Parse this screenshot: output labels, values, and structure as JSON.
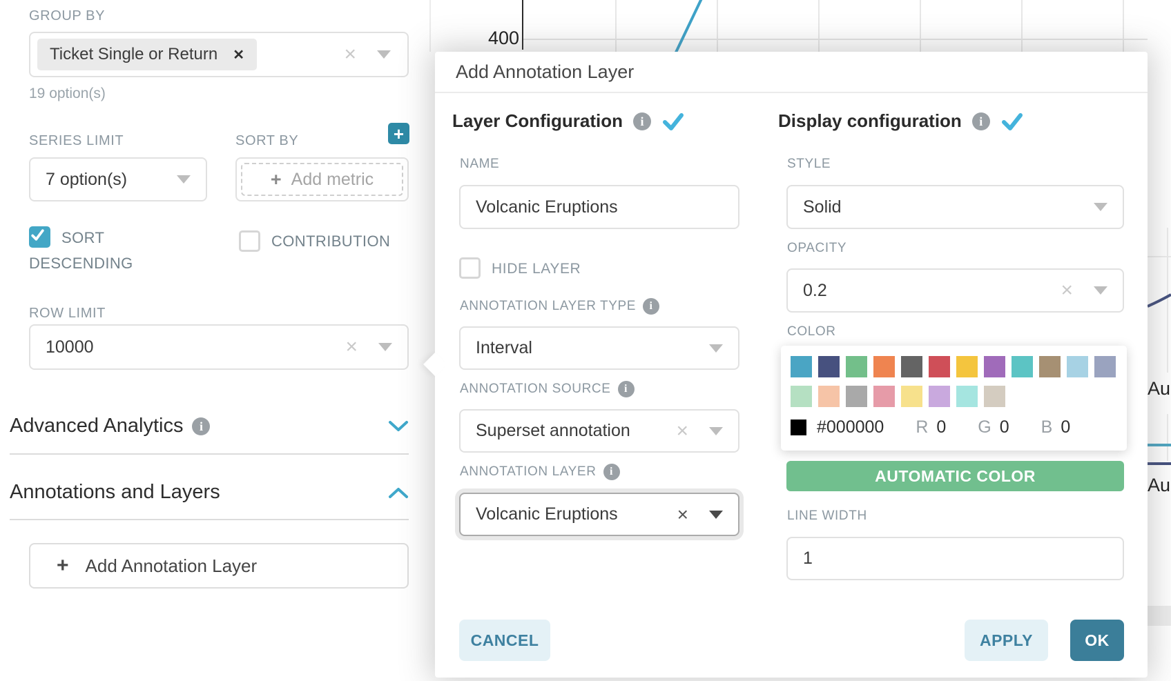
{
  "icons": {
    "tag_remove": "✕",
    "clear": "×",
    "plus": "+",
    "info": "i"
  },
  "left_panel": {
    "group_by_label": "GROUP BY",
    "group_by_tag": "Ticket Single or Return",
    "group_by_hint": "19 option(s)",
    "series_limit_label": "SERIES LIMIT",
    "series_limit_value": "7 option(s)",
    "sort_by_label": "SORT BY",
    "add_metric_placeholder": "Add metric",
    "sort_descending_label": "SORT DESCENDING",
    "contribution_label": "CONTRIBUTION",
    "row_limit_label": "ROW LIMIT",
    "row_limit_value": "10000",
    "advanced_analytics_title": "Advanced Analytics",
    "annotations_title": "Annotations and Layers",
    "add_annotation_label": "Add Annotation Layer"
  },
  "modal": {
    "title": "Add Annotation Layer",
    "layer_section_title": "Layer Configuration",
    "display_section_title": "Display configuration",
    "name_label": "NAME",
    "name_value": "Volcanic Eruptions",
    "hide_layer_label": "HIDE LAYER",
    "type_label": "ANNOTATION LAYER TYPE",
    "type_value": "Interval",
    "source_label": "ANNOTATION SOURCE",
    "source_value": "Superset annotation",
    "layer_label": "ANNOTATION LAYER",
    "layer_value": "Volcanic Eruptions",
    "style_label": "STYLE",
    "style_value": "Solid",
    "opacity_label": "OPACITY",
    "opacity_value": "0.2",
    "color_label": "COLOR",
    "automatic_color_button": "AUTOMATIC COLOR",
    "line_width_label": "LINE WIDTH",
    "line_width_value": "1",
    "cancel_button": "CANCEL",
    "apply_button": "APPLY",
    "ok_button": "OK"
  },
  "color_picker": {
    "row1": [
      "#4aa5c4",
      "#47517f",
      "#73bf8a",
      "#ef8450",
      "#646464",
      "#cf4f58",
      "#f4c53e",
      "#a06bba",
      "#5cc4c4",
      "#a69073",
      "#a7d2e4",
      "#9aa3bf"
    ],
    "row2": [
      "#b5e0c2",
      "#f6c4a7",
      "#a9a9a9",
      "#e69ba8",
      "#f7e18c",
      "#c9a9de",
      "#a5e5e0",
      "#d4ccc0"
    ],
    "selected_hex": "#000000",
    "r_label": "R",
    "r_value": "0",
    "g_label": "G",
    "g_value": "0",
    "b_label": "B",
    "b_value": "0"
  },
  "chart": {
    "y_axis_tick": "400",
    "x_axis_tick_top": "Aug",
    "x_axis_tick_bottom": "Aug"
  },
  "colors": {
    "accent_teal": "#3fa8cb",
    "checkmark_blue": "#44b3dc",
    "checkbox_checked": "#43a7c6",
    "plus_button_bg": "#2e8aa6",
    "ok_button_bg": "#3b7e99",
    "light_button_bg": "#e4f1f6",
    "light_button_text": "#3e81a0",
    "automatic_color_bg": "#71bf8e",
    "chart_line_blue": "#3fa2c8",
    "chart_line_navy": "#44507e",
    "chart_line_teal": "#4fa6c2"
  }
}
